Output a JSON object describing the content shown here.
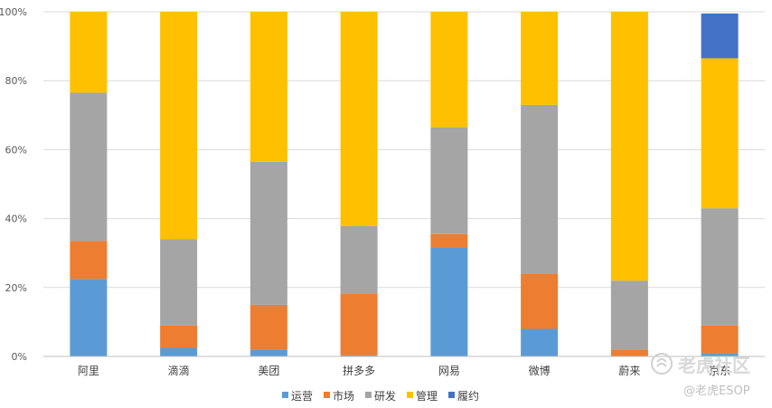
{
  "chart_data": {
    "type": "bar",
    "stacked": true,
    "categories": [
      "阿里",
      "滴滴",
      "美团",
      "拼多多",
      "网易",
      "微博",
      "蔚来",
      "京东"
    ],
    "series": [
      {
        "name": "运营",
        "color": "#5B9BD5",
        "values": [
          22.5,
          2.5,
          2.0,
          0.3,
          31.5,
          8.0,
          0.0,
          1.0
        ]
      },
      {
        "name": "市场",
        "color": "#ED7D31",
        "values": [
          11.0,
          6.5,
          13.0,
          18.0,
          4.0,
          16.0,
          2.0,
          8.0
        ]
      },
      {
        "name": "研发",
        "color": "#A5A5A5",
        "values": [
          43.0,
          25.0,
          41.5,
          19.5,
          31.0,
          49.0,
          20.0,
          34.0
        ]
      },
      {
        "name": "管理",
        "color": "#FFC000",
        "values": [
          23.5,
          66.0,
          43.5,
          62.2,
          33.5,
          27.0,
          78.0,
          43.5
        ]
      },
      {
        "name": "履约",
        "color": "#4472C4",
        "values": [
          0,
          0,
          0,
          0,
          0,
          0,
          0,
          13.0
        ]
      }
    ],
    "ylim": [
      0,
      100
    ],
    "yticks": [
      "0%",
      "20%",
      "40%",
      "60%",
      "80%",
      "100%"
    ],
    "grid": true,
    "legend_position": "bottom"
  },
  "watermark": {
    "logo_text": "老虎社区",
    "handle": "@老虎ESOP"
  }
}
